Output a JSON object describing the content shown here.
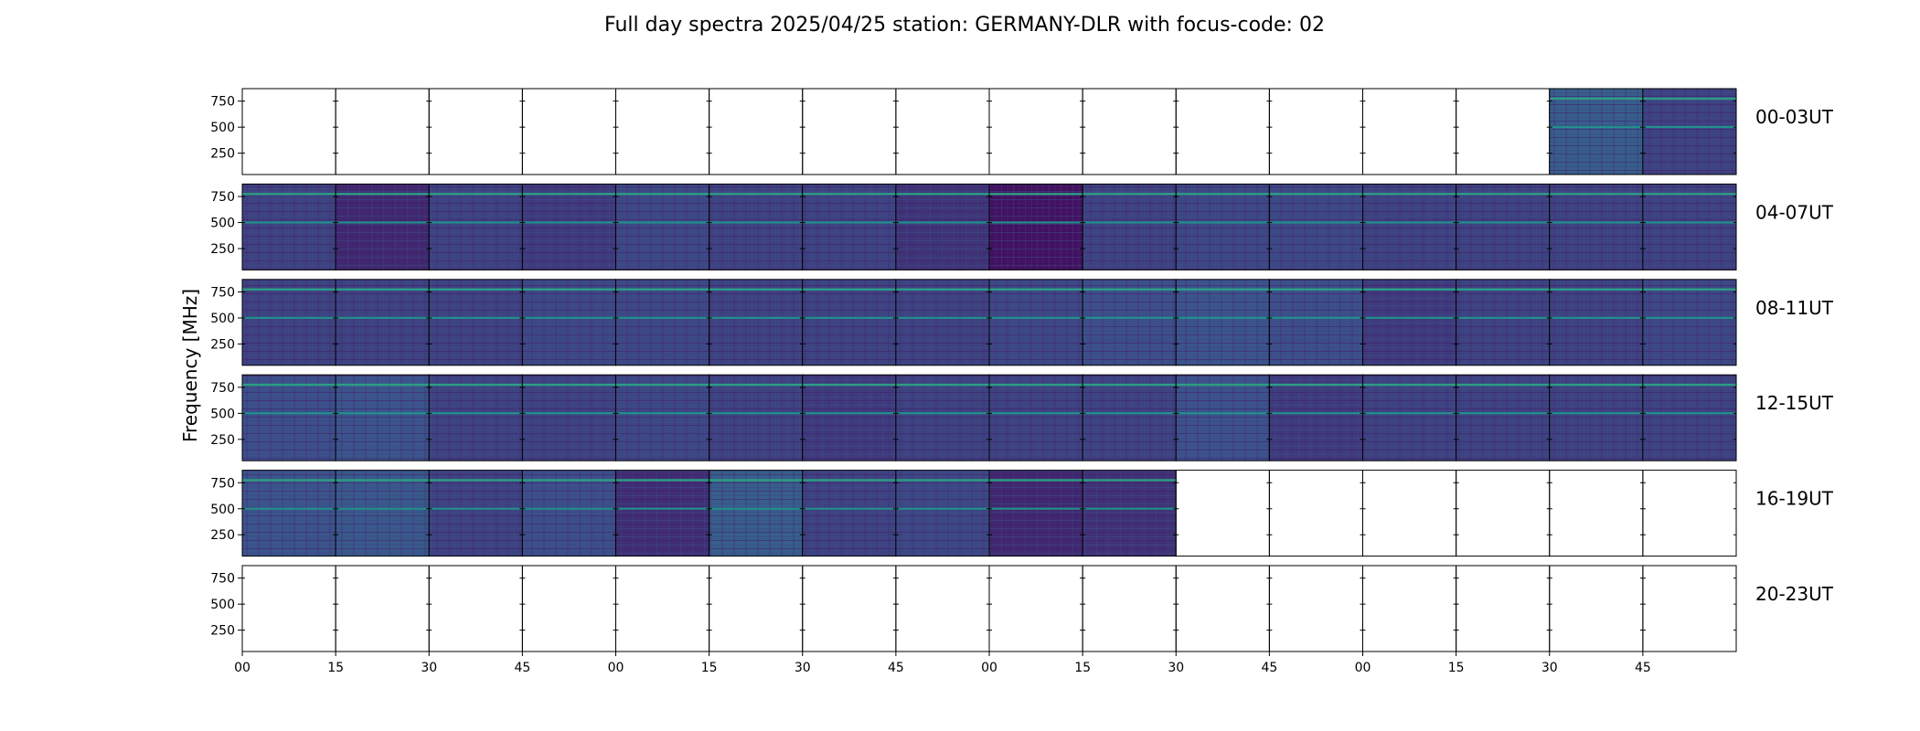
{
  "chart_data": {
    "type": "heatmap",
    "title": "Full day spectra 2025/04/25 station: GERMANY-DLR with focus-code: 02",
    "xlabel": "",
    "ylabel": "Frequency [MHz]",
    "y_ticks": [
      250,
      500,
      750
    ],
    "ylim": [
      45,
      870
    ],
    "x_tick_labels": [
      "00",
      "15",
      "30",
      "45",
      "00",
      "15",
      "30",
      "45",
      "00",
      "15",
      "30",
      "45",
      "00",
      "15",
      "30",
      "45"
    ],
    "panels_per_row": 16,
    "panel_minutes": 15,
    "colormap": "viridis",
    "rows": [
      {
        "label": "00-03UT",
        "panels": [
          {
            "has_data": false
          },
          {
            "has_data": false
          },
          {
            "has_data": false
          },
          {
            "has_data": false
          },
          {
            "has_data": false
          },
          {
            "has_data": false
          },
          {
            "has_data": false
          },
          {
            "has_data": false
          },
          {
            "has_data": false
          },
          {
            "has_data": false
          },
          {
            "has_data": false
          },
          {
            "has_data": false
          },
          {
            "has_data": false
          },
          {
            "has_data": false
          },
          {
            "has_data": true,
            "level": 0.3
          },
          {
            "has_data": true,
            "level": 0.2
          }
        ]
      },
      {
        "label": "04-07UT",
        "panels": [
          {
            "has_data": true,
            "level": 0.2
          },
          {
            "has_data": true,
            "level": 0.12
          },
          {
            "has_data": true,
            "level": 0.2
          },
          {
            "has_data": true,
            "level": 0.18
          },
          {
            "has_data": true,
            "level": 0.22
          },
          {
            "has_data": true,
            "level": 0.2
          },
          {
            "has_data": true,
            "level": 0.2
          },
          {
            "has_data": true,
            "level": 0.16
          },
          {
            "has_data": true,
            "level": 0.05
          },
          {
            "has_data": true,
            "level": 0.2
          },
          {
            "has_data": true,
            "level": 0.22
          },
          {
            "has_data": true,
            "level": 0.22
          },
          {
            "has_data": true,
            "level": 0.2
          },
          {
            "has_data": true,
            "level": 0.2
          },
          {
            "has_data": true,
            "level": 0.2
          },
          {
            "has_data": true,
            "level": 0.2
          }
        ]
      },
      {
        "label": "08-11UT",
        "panels": [
          {
            "has_data": true,
            "level": 0.2
          },
          {
            "has_data": true,
            "level": 0.2
          },
          {
            "has_data": true,
            "level": 0.2
          },
          {
            "has_data": true,
            "level": 0.22
          },
          {
            "has_data": true,
            "level": 0.22
          },
          {
            "has_data": true,
            "level": 0.2
          },
          {
            "has_data": true,
            "level": 0.2
          },
          {
            "has_data": true,
            "level": 0.2
          },
          {
            "has_data": true,
            "level": 0.22
          },
          {
            "has_data": true,
            "level": 0.24
          },
          {
            "has_data": true,
            "level": 0.26
          },
          {
            "has_data": true,
            "level": 0.24
          },
          {
            "has_data": true,
            "level": 0.18
          },
          {
            "has_data": true,
            "level": 0.2
          },
          {
            "has_data": true,
            "level": 0.2
          },
          {
            "has_data": true,
            "level": 0.22
          }
        ]
      },
      {
        "label": "12-15UT",
        "panels": [
          {
            "has_data": true,
            "level": 0.24
          },
          {
            "has_data": true,
            "level": 0.26
          },
          {
            "has_data": true,
            "level": 0.2
          },
          {
            "has_data": true,
            "level": 0.2
          },
          {
            "has_data": true,
            "level": 0.22
          },
          {
            "has_data": true,
            "level": 0.2
          },
          {
            "has_data": true,
            "level": 0.18
          },
          {
            "has_data": true,
            "level": 0.2
          },
          {
            "has_data": true,
            "level": 0.2
          },
          {
            "has_data": true,
            "level": 0.2
          },
          {
            "has_data": true,
            "level": 0.25
          },
          {
            "has_data": true,
            "level": 0.18
          },
          {
            "has_data": true,
            "level": 0.2
          },
          {
            "has_data": true,
            "level": 0.2
          },
          {
            "has_data": true,
            "level": 0.2
          },
          {
            "has_data": true,
            "level": 0.2
          }
        ]
      },
      {
        "label": "16-19UT",
        "panels": [
          {
            "has_data": true,
            "level": 0.26
          },
          {
            "has_data": true,
            "level": 0.28
          },
          {
            "has_data": true,
            "level": 0.2
          },
          {
            "has_data": true,
            "level": 0.24
          },
          {
            "has_data": true,
            "level": 0.14
          },
          {
            "has_data": true,
            "level": 0.3
          },
          {
            "has_data": true,
            "level": 0.2
          },
          {
            "has_data": true,
            "level": 0.22
          },
          {
            "has_data": true,
            "level": 0.12
          },
          {
            "has_data": true,
            "level": 0.15
          },
          {
            "has_data": false
          },
          {
            "has_data": false
          },
          {
            "has_data": false
          },
          {
            "has_data": false
          },
          {
            "has_data": false
          },
          {
            "has_data": false
          }
        ]
      },
      {
        "label": "20-23UT",
        "panels": [
          {
            "has_data": false
          },
          {
            "has_data": false
          },
          {
            "has_data": false
          },
          {
            "has_data": false
          },
          {
            "has_data": false
          },
          {
            "has_data": false
          },
          {
            "has_data": false
          },
          {
            "has_data": false
          },
          {
            "has_data": false
          },
          {
            "has_data": false
          },
          {
            "has_data": false
          },
          {
            "has_data": false
          },
          {
            "has_data": false
          },
          {
            "has_data": false
          },
          {
            "has_data": false
          },
          {
            "has_data": false
          }
        ]
      }
    ]
  }
}
